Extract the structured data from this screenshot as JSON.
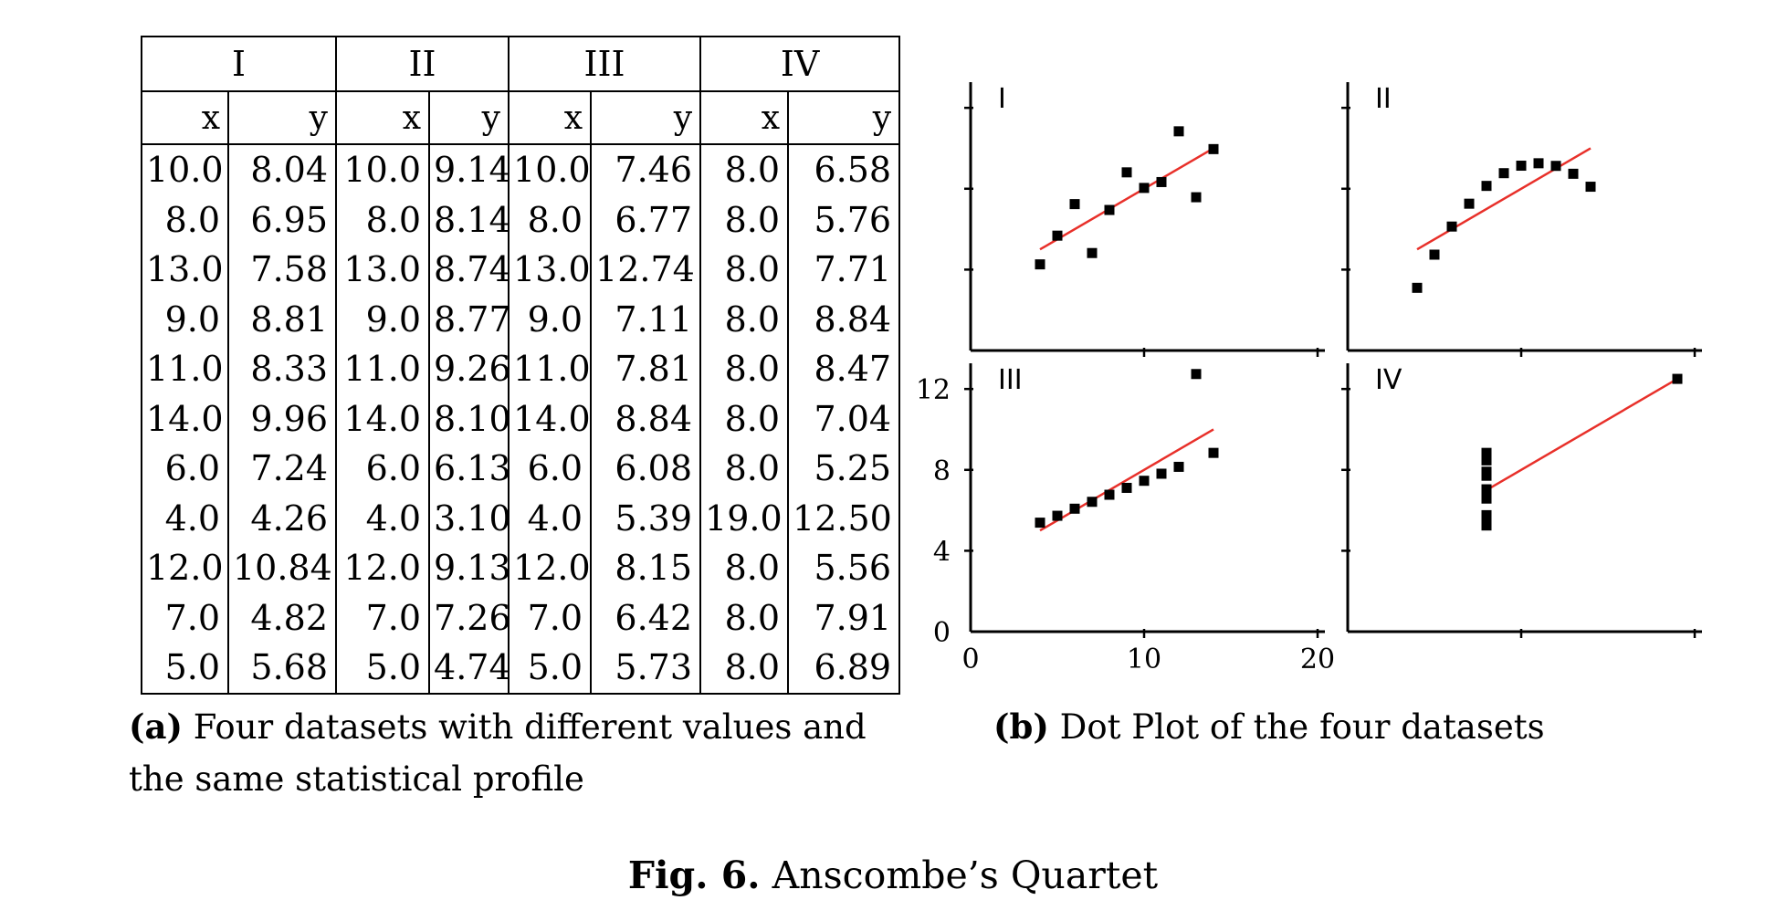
{
  "table": {
    "groups": [
      "I",
      "II",
      "III",
      "IV"
    ],
    "columns": [
      "x",
      "y",
      "x",
      "y",
      "x",
      "y",
      "x",
      "y"
    ],
    "rows": [
      [
        "10.0",
        "8.04",
        "10.0",
        "9.14",
        "10.0",
        "7.46",
        "8.0",
        "6.58"
      ],
      [
        "8.0",
        "6.95",
        "8.0",
        "8.14",
        "8.0",
        "6.77",
        "8.0",
        "5.76"
      ],
      [
        "13.0",
        "7.58",
        "13.0",
        "8.74",
        "13.0",
        "12.74",
        "8.0",
        "7.71"
      ],
      [
        "9.0",
        "8.81",
        "9.0",
        "8.77",
        "9.0",
        "7.11",
        "8.0",
        "8.84"
      ],
      [
        "11.0",
        "8.33",
        "11.0",
        "9.26",
        "11.0",
        "7.81",
        "8.0",
        "8.47"
      ],
      [
        "14.0",
        "9.96",
        "14.0",
        "8.10",
        "14.0",
        "8.84",
        "8.0",
        "7.04"
      ],
      [
        "6.0",
        "7.24",
        "6.0",
        "6.13",
        "6.0",
        "6.08",
        "8.0",
        "5.25"
      ],
      [
        "4.0",
        "4.26",
        "4.0",
        "3.10",
        "4.0",
        "5.39",
        "19.0",
        "12.50"
      ],
      [
        "12.0",
        "10.84",
        "12.0",
        "9.13",
        "12.0",
        "8.15",
        "8.0",
        "5.56"
      ],
      [
        "7.0",
        "4.82",
        "7.0",
        "7.26",
        "7.0",
        "6.42",
        "8.0",
        "7.91"
      ],
      [
        "5.0",
        "5.68",
        "5.0",
        "4.74",
        "5.0",
        "5.73",
        "8.0",
        "6.89"
      ]
    ]
  },
  "captions": {
    "a_label": "(a)",
    "a_text": "Four datasets with different values and the same statistical profile",
    "b_label": "(b)",
    "b_text": "Dot Plot of the four datasets",
    "fig_label": "Fig. 6.",
    "fig_text": "Anscombe’s Quartet"
  },
  "chart_data": {
    "type": "scatter",
    "xlim": [
      0,
      20
    ],
    "ylim": [
      0,
      13
    ],
    "x_ticks": [
      0,
      10,
      20
    ],
    "y_ticks": [
      0,
      4,
      8,
      12
    ],
    "regression_line": {
      "slope": 0.5,
      "intercept": 3.0,
      "color": "#e8302a"
    },
    "point_color": "#000000",
    "panels": [
      {
        "label": "I",
        "x": [
          10,
          8,
          13,
          9,
          11,
          14,
          6,
          4,
          12,
          7,
          5
        ],
        "y": [
          8.04,
          6.95,
          7.58,
          8.81,
          8.33,
          9.96,
          7.24,
          4.26,
          10.84,
          4.82,
          5.68
        ]
      },
      {
        "label": "II",
        "x": [
          10,
          8,
          13,
          9,
          11,
          14,
          6,
          4,
          12,
          7,
          5
        ],
        "y": [
          9.14,
          8.14,
          8.74,
          8.77,
          9.26,
          8.1,
          6.13,
          3.1,
          9.13,
          7.26,
          4.74
        ]
      },
      {
        "label": "III",
        "x": [
          10,
          8,
          13,
          9,
          11,
          14,
          6,
          4,
          12,
          7,
          5
        ],
        "y": [
          7.46,
          6.77,
          12.74,
          7.11,
          7.81,
          8.84,
          6.08,
          5.39,
          8.15,
          6.42,
          5.73
        ]
      },
      {
        "label": "IV",
        "x": [
          8,
          8,
          8,
          8,
          8,
          8,
          8,
          19,
          8,
          8,
          8
        ],
        "y": [
          6.58,
          5.76,
          7.71,
          8.84,
          8.47,
          7.04,
          5.25,
          12.5,
          5.56,
          7.91,
          6.89
        ]
      }
    ]
  }
}
